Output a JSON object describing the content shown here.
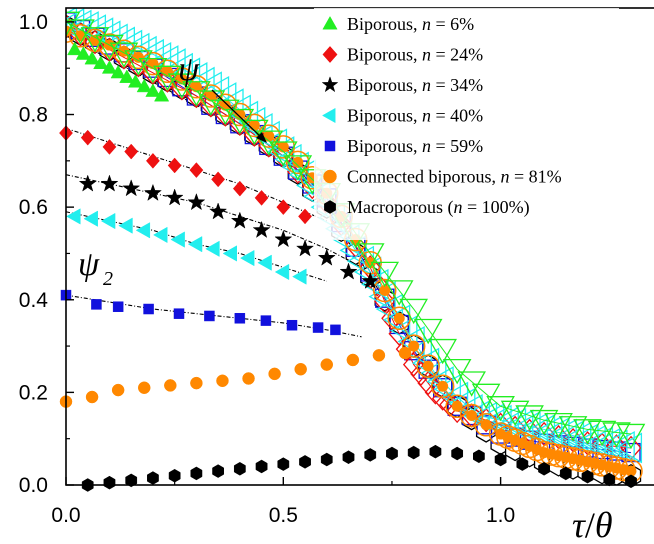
{
  "chart_data": {
    "type": "scatter",
    "title": "",
    "xlabel": {
      "var1": "τ",
      "sep": "/",
      "var2": "θ"
    },
    "ylabel": "",
    "xlim": [
      0,
      1.3
    ],
    "ylim": [
      0,
      1.03
    ],
    "x_ticks": [
      0,
      0.5,
      1
    ],
    "x_tick_labels": [
      "0.0",
      "0.5",
      "1.0"
    ],
    "y_ticks": [
      0,
      0.2,
      0.4,
      0.6,
      0.8,
      1.0
    ],
    "y_tick_labels": [
      "0.0",
      "0.2",
      "0.4",
      "0.6",
      "0.8",
      "1.0"
    ],
    "grid": false,
    "legend_position": "top-right",
    "annotations": {
      "psi": "ψ",
      "psi2_base": "ψ",
      "psi2_sub": "2"
    },
    "colors": {
      "green": "#22ee22",
      "red": "#ee1111",
      "black": "#000000",
      "cyan": "#22eeee",
      "blue": "#1111dd",
      "orange": "#ff8800"
    },
    "series": [
      {
        "legend_name": "Biporous, ",
        "legend_n": "n",
        "legend_value": " = 6%",
        "marker": "triangle-up",
        "color": "#22ee22",
        "points": [
          [
            0.02,
            0.94
          ],
          [
            0.04,
            0.93
          ],
          [
            0.06,
            0.92
          ],
          [
            0.08,
            0.91
          ],
          [
            0.1,
            0.9
          ],
          [
            0.12,
            0.89
          ],
          [
            0.14,
            0.88
          ],
          [
            0.16,
            0.87
          ],
          [
            0.18,
            0.86
          ],
          [
            0.2,
            0.85
          ],
          [
            0.22,
            0.84
          ]
        ],
        "psi_curve": [
          [
            0.0,
            1.0
          ],
          [
            0.1,
            0.95
          ],
          [
            0.2,
            0.9
          ],
          [
            0.3,
            0.85
          ],
          [
            0.4,
            0.79
          ],
          [
            0.5,
            0.72
          ],
          [
            0.6,
            0.63
          ],
          [
            0.7,
            0.5
          ],
          [
            0.8,
            0.38
          ],
          [
            0.9,
            0.25
          ],
          [
            1.0,
            0.17
          ],
          [
            1.1,
            0.14
          ],
          [
            1.2,
            0.12
          ],
          [
            1.3,
            0.11
          ]
        ]
      },
      {
        "legend_name": "Biporous, ",
        "legend_n": "n",
        "legend_value": " = 24%",
        "marker": "diamond",
        "color": "#ee1111",
        "points": [
          [
            0.0,
            0.76
          ],
          [
            0.05,
            0.75
          ],
          [
            0.1,
            0.73
          ],
          [
            0.15,
            0.72
          ],
          [
            0.2,
            0.7
          ],
          [
            0.25,
            0.69
          ],
          [
            0.3,
            0.68
          ],
          [
            0.35,
            0.66
          ],
          [
            0.4,
            0.64
          ],
          [
            0.45,
            0.62
          ],
          [
            0.5,
            0.6
          ],
          [
            0.55,
            0.58
          ]
        ],
        "psi_curve": [
          [
            0.0,
            0.99
          ],
          [
            0.1,
            0.94
          ],
          [
            0.2,
            0.89
          ],
          [
            0.3,
            0.84
          ],
          [
            0.4,
            0.78
          ],
          [
            0.5,
            0.71
          ],
          [
            0.6,
            0.61
          ],
          [
            0.7,
            0.47
          ],
          [
            0.75,
            0.36
          ],
          [
            0.8,
            0.26
          ],
          [
            0.85,
            0.2
          ],
          [
            0.9,
            0.16
          ],
          [
            1.0,
            0.13
          ],
          [
            1.1,
            0.11
          ],
          [
            1.2,
            0.09
          ],
          [
            1.3,
            0.08
          ]
        ]
      },
      {
        "legend_name": "Biporous, ",
        "legend_n": "n",
        "legend_value": " = 34%",
        "marker": "star",
        "color": "#000000",
        "points": [
          [
            0.05,
            0.65
          ],
          [
            0.1,
            0.65
          ],
          [
            0.15,
            0.64
          ],
          [
            0.2,
            0.63
          ],
          [
            0.25,
            0.62
          ],
          [
            0.3,
            0.61
          ],
          [
            0.35,
            0.59
          ],
          [
            0.4,
            0.57
          ],
          [
            0.45,
            0.55
          ],
          [
            0.5,
            0.53
          ],
          [
            0.55,
            0.51
          ],
          [
            0.6,
            0.49
          ],
          [
            0.65,
            0.46
          ],
          [
            0.7,
            0.44
          ]
        ],
        "psi_curve": [
          [
            0.0,
            0.99
          ],
          [
            0.1,
            0.94
          ],
          [
            0.2,
            0.89
          ],
          [
            0.3,
            0.84
          ],
          [
            0.4,
            0.78
          ],
          [
            0.5,
            0.71
          ],
          [
            0.6,
            0.6
          ],
          [
            0.7,
            0.45
          ],
          [
            0.8,
            0.3
          ],
          [
            0.9,
            0.17
          ],
          [
            1.0,
            0.09
          ],
          [
            1.1,
            0.05
          ],
          [
            1.2,
            0.03
          ],
          [
            1.3,
            0.02
          ]
        ]
      },
      {
        "legend_name": "Biporous, ",
        "legend_n": "n",
        "legend_value": " = 40%",
        "marker": "triangle-left",
        "color": "#22eeee",
        "points": [
          [
            0.02,
            0.58
          ],
          [
            0.06,
            0.575
          ],
          [
            0.1,
            0.57
          ],
          [
            0.14,
            0.56
          ],
          [
            0.18,
            0.55
          ],
          [
            0.22,
            0.54
          ],
          [
            0.26,
            0.53
          ],
          [
            0.3,
            0.52
          ],
          [
            0.34,
            0.51
          ],
          [
            0.38,
            0.5
          ],
          [
            0.42,
            0.49
          ],
          [
            0.46,
            0.48
          ],
          [
            0.5,
            0.46
          ],
          [
            0.54,
            0.45
          ]
        ],
        "psi_curve": [
          [
            0.0,
            1.0
          ],
          [
            0.05,
            0.99
          ],
          [
            0.1,
            0.97
          ],
          [
            0.15,
            0.95
          ],
          [
            0.2,
            0.93
          ],
          [
            0.25,
            0.91
          ],
          [
            0.3,
            0.88
          ],
          [
            0.35,
            0.85
          ],
          [
            0.4,
            0.81
          ],
          [
            0.45,
            0.77
          ],
          [
            0.5,
            0.72
          ],
          [
            0.55,
            0.67
          ],
          [
            0.6,
            0.6
          ],
          [
            0.65,
            0.53
          ],
          [
            0.7,
            0.46
          ],
          [
            0.75,
            0.38
          ],
          [
            0.8,
            0.31
          ],
          [
            0.85,
            0.24
          ],
          [
            0.9,
            0.19
          ],
          [
            0.95,
            0.15
          ],
          [
            1.0,
            0.14
          ],
          [
            1.05,
            0.13
          ],
          [
            1.1,
            0.12
          ],
          [
            1.15,
            0.11
          ],
          [
            1.2,
            0.1
          ],
          [
            1.25,
            0.09
          ],
          [
            1.3,
            0.08
          ]
        ]
      },
      {
        "legend_name": "Biporous, ",
        "legend_n": "n",
        "legend_value": " = 59%",
        "marker": "square",
        "color": "#1111dd",
        "points": [
          [
            0.0,
            0.41
          ],
          [
            0.07,
            0.39
          ],
          [
            0.12,
            0.385
          ],
          [
            0.19,
            0.38
          ],
          [
            0.26,
            0.37
          ],
          [
            0.33,
            0.365
          ],
          [
            0.4,
            0.36
          ],
          [
            0.46,
            0.355
          ],
          [
            0.52,
            0.345
          ],
          [
            0.58,
            0.34
          ],
          [
            0.62,
            0.335
          ]
        ],
        "psi_curve": [
          [
            0.0,
            1.0
          ],
          [
            0.1,
            0.95
          ],
          [
            0.2,
            0.9
          ],
          [
            0.3,
            0.84
          ],
          [
            0.4,
            0.78
          ],
          [
            0.5,
            0.71
          ],
          [
            0.6,
            0.62
          ],
          [
            0.7,
            0.46
          ],
          [
            0.8,
            0.29
          ],
          [
            0.9,
            0.17
          ],
          [
            1.0,
            0.11
          ],
          [
            1.1,
            0.09
          ],
          [
            1.2,
            0.08
          ],
          [
            1.3,
            0.07
          ]
        ]
      },
      {
        "legend_name": "Connected biporous, ",
        "legend_n": "n",
        "legend_value": " = 81%",
        "marker": "circle",
        "color": "#ff8800",
        "points": [
          [
            0.0,
            0.18
          ],
          [
            0.06,
            0.19
          ],
          [
            0.12,
            0.205
          ],
          [
            0.18,
            0.21
          ],
          [
            0.24,
            0.215
          ],
          [
            0.3,
            0.22
          ],
          [
            0.36,
            0.225
          ],
          [
            0.42,
            0.23
          ],
          [
            0.48,
            0.24
          ],
          [
            0.54,
            0.25
          ],
          [
            0.6,
            0.26
          ],
          [
            0.66,
            0.27
          ],
          [
            0.72,
            0.28
          ],
          [
            0.78,
            0.285
          ]
        ],
        "psi_curve": [
          [
            0.0,
            0.98
          ],
          [
            0.1,
            0.95
          ],
          [
            0.2,
            0.91
          ],
          [
            0.3,
            0.86
          ],
          [
            0.4,
            0.8
          ],
          [
            0.5,
            0.73
          ],
          [
            0.6,
            0.63
          ],
          [
            0.7,
            0.48
          ],
          [
            0.8,
            0.3
          ],
          [
            0.9,
            0.17
          ],
          [
            1.0,
            0.11
          ],
          [
            1.05,
            0.09
          ],
          [
            1.1,
            0.07
          ],
          [
            1.15,
            0.06
          ],
          [
            1.2,
            0.05
          ],
          [
            1.25,
            0.04
          ],
          [
            1.3,
            0.03
          ]
        ]
      },
      {
        "legend_name": "Macroporous (",
        "legend_n": "n",
        "legend_value": " = 100%)",
        "marker": "hexagon",
        "color": "#000000",
        "points": [
          [
            0.05,
            0.0
          ],
          [
            0.1,
            0.005
          ],
          [
            0.15,
            0.01
          ],
          [
            0.2,
            0.015
          ],
          [
            0.25,
            0.02
          ],
          [
            0.3,
            0.025
          ],
          [
            0.35,
            0.03
          ],
          [
            0.4,
            0.035
          ],
          [
            0.45,
            0.04
          ],
          [
            0.5,
            0.045
          ],
          [
            0.55,
            0.05
          ],
          [
            0.6,
            0.055
          ],
          [
            0.65,
            0.06
          ],
          [
            0.7,
            0.065
          ],
          [
            0.75,
            0.068
          ],
          [
            0.8,
            0.07
          ],
          [
            0.85,
            0.072
          ],
          [
            0.9,
            0.068
          ],
          [
            0.95,
            0.062
          ],
          [
            1.0,
            0.055
          ],
          [
            1.05,
            0.045
          ],
          [
            1.1,
            0.035
          ],
          [
            1.15,
            0.025
          ],
          [
            1.2,
            0.018
          ],
          [
            1.25,
            0.012
          ],
          [
            1.3,
            0.008
          ]
        ],
        "psi_curve": []
      }
    ],
    "fits": [
      {
        "points": [
          [
            0.0,
            0.97
          ],
          [
            0.1,
            0.92
          ],
          [
            0.2,
            0.87
          ],
          [
            0.3,
            0.82
          ],
          [
            0.4,
            0.77
          ],
          [
            0.45,
            0.74
          ]
        ]
      },
      {
        "points": [
          [
            0.0,
            0.77
          ],
          [
            0.1,
            0.74
          ],
          [
            0.2,
            0.71
          ],
          [
            0.3,
            0.68
          ],
          [
            0.4,
            0.65
          ],
          [
            0.5,
            0.61
          ],
          [
            0.6,
            0.57
          ]
        ]
      },
      {
        "points": [
          [
            0.0,
            0.67
          ],
          [
            0.1,
            0.65
          ],
          [
            0.2,
            0.63
          ],
          [
            0.3,
            0.61
          ],
          [
            0.4,
            0.58
          ],
          [
            0.5,
            0.55
          ],
          [
            0.6,
            0.51
          ],
          [
            0.7,
            0.46
          ]
        ]
      },
      {
        "points": [
          [
            0.0,
            0.59
          ],
          [
            0.1,
            0.57
          ],
          [
            0.2,
            0.55
          ],
          [
            0.3,
            0.52
          ],
          [
            0.4,
            0.5
          ],
          [
            0.5,
            0.47
          ],
          [
            0.6,
            0.44
          ]
        ]
      },
      {
        "points": [
          [
            0.0,
            0.41
          ],
          [
            0.1,
            0.395
          ],
          [
            0.2,
            0.38
          ],
          [
            0.3,
            0.37
          ],
          [
            0.4,
            0.36
          ],
          [
            0.5,
            0.35
          ],
          [
            0.6,
            0.335
          ],
          [
            0.68,
            0.32
          ]
        ]
      }
    ]
  }
}
